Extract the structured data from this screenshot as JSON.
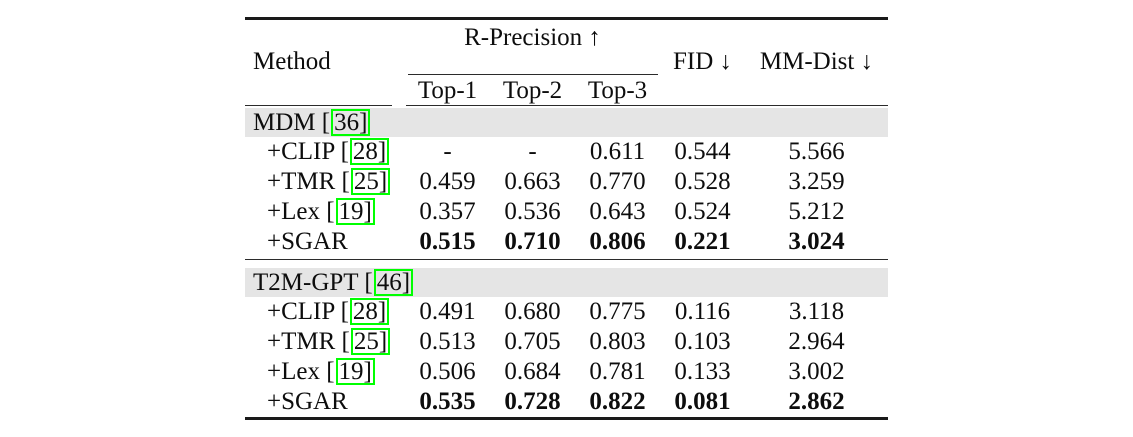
{
  "table": {
    "header": {
      "method": "Method",
      "group": "R-Precision ↑",
      "sub1": "Top-1",
      "sub2": "Top-2",
      "sub3": "Top-3",
      "fid": "FID ↓",
      "mmdist": "MM-Dist ↓"
    },
    "colors": {
      "section_bg": "#e5e5e5",
      "citation_border": "#00ff00",
      "rule": "#2b2b2b",
      "text": "#0d0d0d"
    },
    "sections": [
      {
        "name": "MDM",
        "prefix": "MDM [",
        "citation": "36]",
        "rows": [
          {
            "prefix": "+CLIP [",
            "citation": "28]",
            "values": [
              "-",
              "-",
              "0.611",
              "0.544",
              "5.566"
            ]
          },
          {
            "prefix": "+TMR [",
            "citation": "25]",
            "values": [
              "0.459",
              "0.663",
              "0.770",
              "0.528",
              "3.259"
            ]
          },
          {
            "prefix": "+Lex [",
            "citation": "19]",
            "values": [
              "0.357",
              "0.536",
              "0.643",
              "0.524",
              "5.212"
            ]
          },
          {
            "prefix": "+SGAR",
            "citation": null,
            "values": [
              "0.515",
              "0.710",
              "0.806",
              "0.221",
              "3.024"
            ]
          }
        ]
      },
      {
        "name": "T2M-GPT",
        "prefix": "T2M-GPT [",
        "citation": "46]",
        "rows": [
          {
            "prefix": "+CLIP [",
            "citation": "28]",
            "values": [
              "0.491",
              "0.680",
              "0.775",
              "0.116",
              "3.118"
            ]
          },
          {
            "prefix": "+TMR [",
            "citation": "25]",
            "values": [
              "0.513",
              "0.705",
              "0.803",
              "0.103",
              "2.964"
            ]
          },
          {
            "prefix": "+Lex [",
            "citation": "19]",
            "values": [
              "0.506",
              "0.684",
              "0.781",
              "0.133",
              "3.002"
            ]
          },
          {
            "prefix": "+SGAR",
            "citation": null,
            "values": [
              "0.535",
              "0.728",
              "0.822",
              "0.081",
              "2.862"
            ]
          }
        ]
      }
    ]
  },
  "chart_data": {
    "type": "table",
    "title": "",
    "columns": [
      "Method",
      "R-Precision Top-1 ↑",
      "R-Precision Top-2 ↑",
      "R-Precision Top-3 ↑",
      "FID ↓",
      "MM-Dist ↓"
    ],
    "rows": [
      [
        "MDM [36]",
        null,
        null,
        null,
        null,
        null
      ],
      [
        "+CLIP [28]",
        null,
        null,
        0.611,
        0.544,
        5.566
      ],
      [
        "+TMR [25]",
        0.459,
        0.663,
        0.77,
        0.528,
        3.259
      ],
      [
        "+Lex [19]",
        0.357,
        0.536,
        0.643,
        0.524,
        5.212
      ],
      [
        "+SGAR",
        0.515,
        0.71,
        0.806,
        0.221,
        3.024
      ],
      [
        "T2M-GPT [46]",
        null,
        null,
        null,
        null,
        null
      ],
      [
        "+CLIP [28]",
        0.491,
        0.68,
        0.775,
        0.116,
        3.118
      ],
      [
        "+TMR [25]",
        0.513,
        0.705,
        0.803,
        0.103,
        2.964
      ],
      [
        "+Lex [19]",
        0.506,
        0.684,
        0.781,
        0.133,
        3.002
      ],
      [
        "+SGAR",
        0.535,
        0.728,
        0.822,
        0.081,
        2.862
      ]
    ],
    "bold_rows": [
      4,
      9
    ],
    "layout": "two sections (MDM, T2M-GPT) with shaded section-header rows; best (+SGAR) rows in bold"
  }
}
